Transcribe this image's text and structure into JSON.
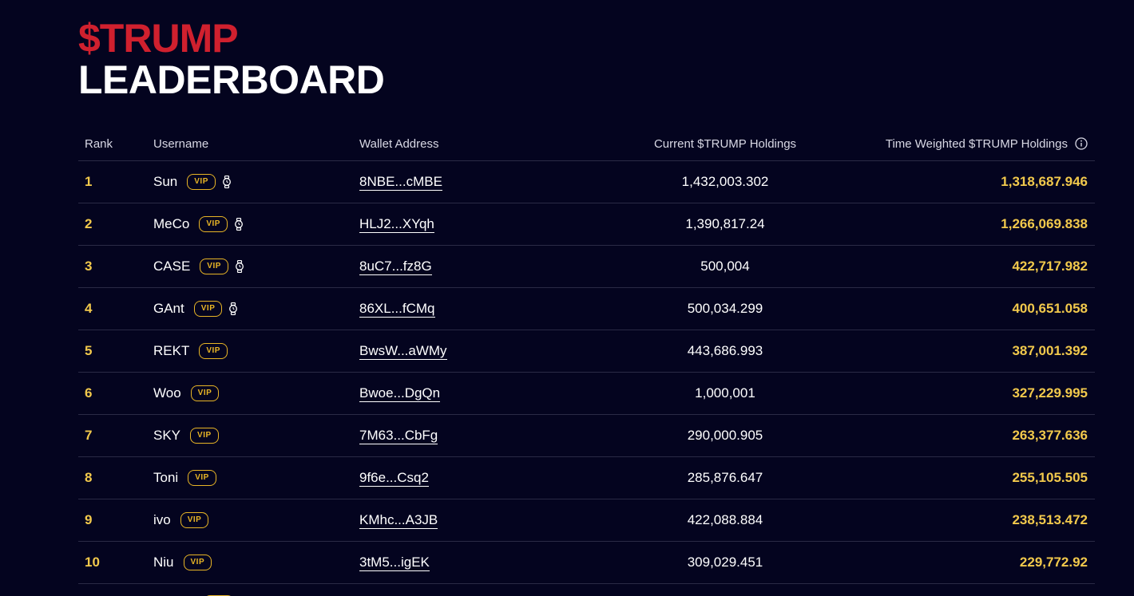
{
  "title": {
    "line1": "$TRUMP",
    "line2": "LEADERBOARD"
  },
  "columns": {
    "rank": "Rank",
    "username": "Username",
    "wallet": "Wallet Address",
    "current": "Current $TRUMP Holdings",
    "time_weighted": "Time Weighted $TRUMP Holdings"
  },
  "badge_label": "VIP",
  "rows": [
    {
      "rank": "1",
      "username": "Sun",
      "vip": true,
      "watch": true,
      "wallet": "8NBE...cMBE",
      "current": "1,432,003.302",
      "time_weighted": "1,318,687.946"
    },
    {
      "rank": "2",
      "username": "MeCo",
      "vip": true,
      "watch": true,
      "wallet": "HLJ2...XYqh",
      "current": "1,390,817.24",
      "time_weighted": "1,266,069.838"
    },
    {
      "rank": "3",
      "username": "CASE",
      "vip": true,
      "watch": true,
      "wallet": "8uC7...fz8G",
      "current": "500,004",
      "time_weighted": "422,717.982"
    },
    {
      "rank": "4",
      "username": "GAnt",
      "vip": true,
      "watch": true,
      "wallet": "86XL...fCMq",
      "current": "500,034.299",
      "time_weighted": "400,651.058"
    },
    {
      "rank": "5",
      "username": "REKT",
      "vip": true,
      "watch": false,
      "wallet": "BwsW...aWMy",
      "current": "443,686.993",
      "time_weighted": "387,001.392"
    },
    {
      "rank": "6",
      "username": "Woo",
      "vip": true,
      "watch": false,
      "wallet": "Bwoe...DgQn",
      "current": "1,000,001",
      "time_weighted": "327,229.995"
    },
    {
      "rank": "7",
      "username": "SKY",
      "vip": true,
      "watch": false,
      "wallet": "7M63...CbFg",
      "current": "290,000.905",
      "time_weighted": "263,377.636"
    },
    {
      "rank": "8",
      "username": "Toni",
      "vip": true,
      "watch": false,
      "wallet": "9f6e...Csq2",
      "current": "285,876.647",
      "time_weighted": "255,105.505"
    },
    {
      "rank": "9",
      "username": "ivo",
      "vip": true,
      "watch": false,
      "wallet": "KMhc...A3JB",
      "current": "422,088.884",
      "time_weighted": "238,513.472"
    },
    {
      "rank": "10",
      "username": "Niu",
      "vip": true,
      "watch": false,
      "wallet": "3tM5...igEK",
      "current": "309,029.451",
      "time_weighted": "229,772.92"
    }
  ],
  "icons": {
    "watch": "watch-icon",
    "info": "info-icon"
  },
  "colors": {
    "background": "#04041f",
    "title_accent": "#d0202e",
    "gold": "#f2c94c",
    "vip_border": "#e8b526",
    "divider": "#2a2a45"
  }
}
